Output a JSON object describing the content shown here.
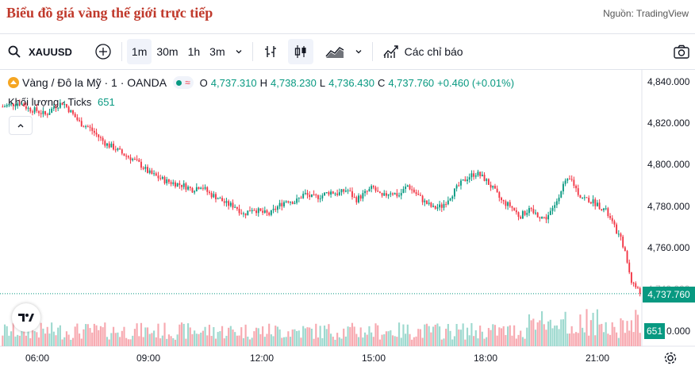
{
  "header": {
    "title": "Biểu đồ giá vàng thế giới trực tiếp",
    "source": "Nguồn: TradingView"
  },
  "toolbar": {
    "symbol": "XAUUSD",
    "intervals": [
      "1m",
      "30m",
      "1h",
      "3m"
    ],
    "active_interval": "1m",
    "indicators_label": "Các chỉ báo"
  },
  "legend": {
    "name": "Vàng / Đô la Mỹ · 1 · OANDA",
    "o_key": "O",
    "o": "4,737.310",
    "h_key": "H",
    "h": "4,738.230",
    "l_key": "L",
    "l": "4,736.430",
    "c_key": "C",
    "c": "4,737.760",
    "change": "+0.460 (+0.01%)",
    "volume_label": "Khối lượng · Ticks",
    "volume_value": "651"
  },
  "chart_data": {
    "type": "candlestick",
    "x_ticks": [
      "06:00",
      "09:00",
      "12:00",
      "15:00",
      "18:00",
      "21:00"
    ],
    "y_ticks": [
      "4,840.000",
      "4,820.000",
      "4,800.000",
      "4,780.000",
      "4,760.000",
      "4,740.000"
    ],
    "last_price": "4,737.760",
    "last_volume": "651",
    "price_path": [
      4828,
      4829,
      4830,
      4827,
      4826,
      4824,
      4828,
      4830,
      4825,
      4820,
      4818,
      4814,
      4810,
      4808,
      4805,
      4803,
      4800,
      4796,
      4794,
      4792,
      4791,
      4790,
      4788,
      4790,
      4786,
      4784,
      4781,
      4780,
      4776,
      4779,
      4777,
      4776,
      4780,
      4783,
      4782,
      4786,
      4784,
      4785,
      4787,
      4786,
      4788,
      4783,
      4786,
      4789,
      4784,
      4787,
      4785,
      4790,
      4786,
      4782,
      4779,
      4780,
      4785,
      4790,
      4794,
      4796,
      4793,
      4788,
      4782,
      4780,
      4775,
      4778,
      4776,
      4774,
      4779,
      4790,
      4793,
      4785,
      4783,
      4781,
      4778,
      4770,
      4762,
      4744,
      4738
    ],
    "volume_max_label": "0.000",
    "colors": {
      "up": "#089981",
      "down": "#f23645",
      "vol_up": "#9ed9cf",
      "vol_down": "#f7a9b0",
      "last": "#089981"
    }
  }
}
